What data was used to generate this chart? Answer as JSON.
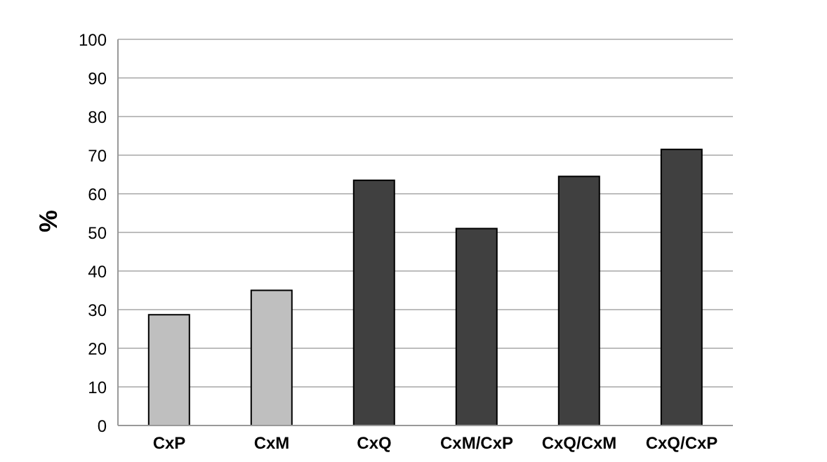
{
  "chart_data": {
    "type": "bar",
    "ylabel": "%",
    "categories": [
      "CxP",
      "CxM",
      "CxQ",
      "CxM/CxP",
      "CxQ/CxM",
      "CxQ/CxP"
    ],
    "values": [
      28.7,
      35,
      63.5,
      51,
      64.5,
      71.5
    ],
    "colors": [
      "#bfbfbf",
      "#bfbfbf",
      "#404040",
      "#404040",
      "#404040",
      "#404040"
    ],
    "ylim": [
      0,
      100
    ],
    "yticks": [
      0,
      10,
      20,
      30,
      40,
      50,
      60,
      70,
      80,
      90,
      100
    ],
    "grid": "y"
  }
}
